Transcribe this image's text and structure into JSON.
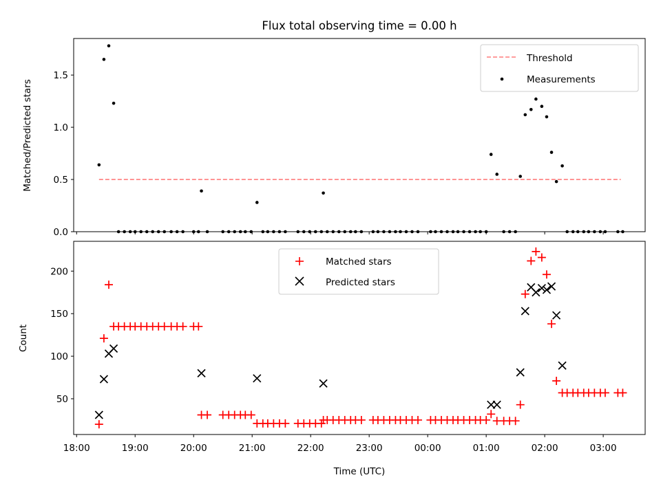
{
  "figure": {
    "title": "Flux total observing time = 0.00 h",
    "xlabel": "Time (UTC)",
    "xticks": [
      {
        "t": 0,
        "label": "18:00"
      },
      {
        "t": 60,
        "label": "19:00"
      },
      {
        "t": 120,
        "label": "20:00"
      },
      {
        "t": 180,
        "label": "21:00"
      },
      {
        "t": 240,
        "label": "22:00"
      },
      {
        "t": 300,
        "label": "23:00"
      },
      {
        "t": 360,
        "label": "00:00"
      },
      {
        "t": 420,
        "label": "01:00"
      },
      {
        "t": 480,
        "label": "02:00"
      },
      {
        "t": 540,
        "label": "03:00"
      }
    ],
    "xlim": [
      -3,
      583
    ]
  },
  "chart_data": [
    {
      "type": "scatter",
      "x_unit": "minutes since 18:00 UTC",
      "ylabel": "Matched/Predicted stars",
      "ylim": [
        0,
        1.85
      ],
      "yticks": [
        0.0,
        0.5,
        1.0,
        1.5
      ],
      "legend": {
        "position": "top-right",
        "entries": [
          "Threshold",
          "Measurements"
        ]
      },
      "threshold": {
        "name": "Threshold",
        "value": 0.5,
        "x_range": [
          23,
          558
        ],
        "color": "#ff7b7b",
        "style": "dashed"
      },
      "series": [
        {
          "name": "Measurements",
          "color": "#000000",
          "marker": "dot",
          "points": [
            [
              23,
              0.64
            ],
            [
              28,
              1.65
            ],
            [
              33,
              1.78
            ],
            [
              38,
              1.23
            ],
            [
              43,
              0
            ],
            [
              49,
              0
            ],
            [
              55,
              0
            ],
            [
              60,
              0
            ],
            [
              66,
              0
            ],
            [
              72,
              0
            ],
            [
              78,
              0
            ],
            [
              84,
              0
            ],
            [
              90,
              0
            ],
            [
              97,
              0
            ],
            [
              103,
              0
            ],
            [
              109,
              0
            ],
            [
              120,
              0
            ],
            [
              125,
              0
            ],
            [
              128,
              0.39
            ],
            [
              134,
              0
            ],
            [
              150,
              0
            ],
            [
              156,
              0
            ],
            [
              162,
              0
            ],
            [
              168,
              0
            ],
            [
              173,
              0
            ],
            [
              179,
              0
            ],
            [
              185,
              0.28
            ],
            [
              191,
              0
            ],
            [
              196,
              0
            ],
            [
              202,
              0
            ],
            [
              208,
              0
            ],
            [
              214,
              0
            ],
            [
              227,
              0
            ],
            [
              233,
              0
            ],
            [
              239,
              0
            ],
            [
              245,
              0
            ],
            [
              251,
              0
            ],
            [
              253,
              0.37
            ],
            [
              257,
              0
            ],
            [
              263,
              0
            ],
            [
              269,
              0
            ],
            [
              275,
              0
            ],
            [
              281,
              0
            ],
            [
              286,
              0
            ],
            [
              292,
              0
            ],
            [
              304,
              0
            ],
            [
              309,
              0
            ],
            [
              315,
              0
            ],
            [
              321,
              0
            ],
            [
              327,
              0
            ],
            [
              332,
              0
            ],
            [
              338,
              0
            ],
            [
              344,
              0
            ],
            [
              350,
              0
            ],
            [
              363,
              0
            ],
            [
              368,
              0
            ],
            [
              374,
              0
            ],
            [
              380,
              0
            ],
            [
              386,
              0
            ],
            [
              391,
              0
            ],
            [
              397,
              0
            ],
            [
              403,
              0
            ],
            [
              409,
              0
            ],
            [
              414,
              0
            ],
            [
              420,
              0
            ],
            [
              425,
              0.74
            ],
            [
              431,
              0.55
            ],
            [
              438,
              0
            ],
            [
              444,
              0
            ],
            [
              450,
              0
            ],
            [
              455,
              0.53
            ],
            [
              460,
              1.12
            ],
            [
              466,
              1.17
            ],
            [
              471,
              1.27
            ],
            [
              477,
              1.2
            ],
            [
              482,
              1.1
            ],
            [
              487,
              0.76
            ],
            [
              492,
              0.48
            ],
            [
              498,
              0.63
            ],
            [
              503,
              0
            ],
            [
              509,
              0
            ],
            [
              514,
              0
            ],
            [
              520,
              0
            ],
            [
              525,
              0
            ],
            [
              531,
              0
            ],
            [
              537,
              0
            ],
            [
              542,
              0
            ],
            [
              555,
              0
            ],
            [
              560,
              0
            ]
          ]
        }
      ]
    },
    {
      "type": "scatter",
      "x_unit": "minutes since 18:00 UTC",
      "ylabel": "Count",
      "ylim": [
        8,
        235
      ],
      "yticks": [
        50,
        100,
        150,
        200
      ],
      "legend": {
        "position": "top-center",
        "entries": [
          "Matched stars",
          "Predicted stars"
        ]
      },
      "series": [
        {
          "name": "Matched stars",
          "color": "#ff0000",
          "marker": "plus",
          "points": [
            [
              23,
              20
            ],
            [
              28,
              121
            ],
            [
              33,
              184
            ],
            [
              38,
              135
            ],
            [
              43,
              135
            ],
            [
              49,
              135
            ],
            [
              55,
              135
            ],
            [
              60,
              135
            ],
            [
              66,
              135
            ],
            [
              72,
              135
            ],
            [
              78,
              135
            ],
            [
              84,
              135
            ],
            [
              90,
              135
            ],
            [
              97,
              135
            ],
            [
              103,
              135
            ],
            [
              109,
              135
            ],
            [
              120,
              135
            ],
            [
              125,
              135
            ],
            [
              128,
              31
            ],
            [
              134,
              31
            ],
            [
              150,
              31
            ],
            [
              156,
              31
            ],
            [
              162,
              31
            ],
            [
              168,
              31
            ],
            [
              173,
              31
            ],
            [
              179,
              31
            ],
            [
              185,
              21
            ],
            [
              191,
              21
            ],
            [
              196,
              21
            ],
            [
              202,
              21
            ],
            [
              208,
              21
            ],
            [
              214,
              21
            ],
            [
              227,
              21
            ],
            [
              233,
              21
            ],
            [
              239,
              21
            ],
            [
              245,
              21
            ],
            [
              251,
              21
            ],
            [
              253,
              25
            ],
            [
              257,
              25
            ],
            [
              263,
              25
            ],
            [
              269,
              25
            ],
            [
              275,
              25
            ],
            [
              281,
              25
            ],
            [
              286,
              25
            ],
            [
              292,
              25
            ],
            [
              304,
              25
            ],
            [
              309,
              25
            ],
            [
              315,
              25
            ],
            [
              321,
              25
            ],
            [
              327,
              25
            ],
            [
              332,
              25
            ],
            [
              338,
              25
            ],
            [
              344,
              25
            ],
            [
              350,
              25
            ],
            [
              363,
              25
            ],
            [
              368,
              25
            ],
            [
              374,
              25
            ],
            [
              380,
              25
            ],
            [
              386,
              25
            ],
            [
              391,
              25
            ],
            [
              397,
              25
            ],
            [
              403,
              25
            ],
            [
              409,
              25
            ],
            [
              414,
              25
            ],
            [
              420,
              25
            ],
            [
              425,
              32
            ],
            [
              431,
              24
            ],
            [
              438,
              24
            ],
            [
              444,
              24
            ],
            [
              450,
              24
            ],
            [
              455,
              43
            ],
            [
              460,
              173
            ],
            [
              466,
              212
            ],
            [
              471,
              223
            ],
            [
              477,
              216
            ],
            [
              482,
              196
            ],
            [
              487,
              138
            ],
            [
              492,
              71
            ],
            [
              498,
              57
            ],
            [
              503,
              57
            ],
            [
              509,
              57
            ],
            [
              514,
              57
            ],
            [
              520,
              57
            ],
            [
              525,
              57
            ],
            [
              531,
              57
            ],
            [
              537,
              57
            ],
            [
              542,
              57
            ],
            [
              555,
              57
            ],
            [
              560,
              57
            ]
          ]
        },
        {
          "name": "Predicted stars",
          "color": "#000000",
          "marker": "x",
          "points": [
            [
              23,
              31
            ],
            [
              28,
              73
            ],
            [
              33,
              103
            ],
            [
              38,
              109
            ],
            [
              128,
              80
            ],
            [
              185,
              74
            ],
            [
              253,
              68
            ],
            [
              425,
              43
            ],
            [
              431,
              43
            ],
            [
              455,
              81
            ],
            [
              460,
              153
            ],
            [
              466,
              181
            ],
            [
              471,
              175
            ],
            [
              477,
              180
            ],
            [
              482,
              178
            ],
            [
              487,
              182
            ],
            [
              492,
              148
            ],
            [
              498,
              89
            ]
          ]
        }
      ]
    }
  ]
}
